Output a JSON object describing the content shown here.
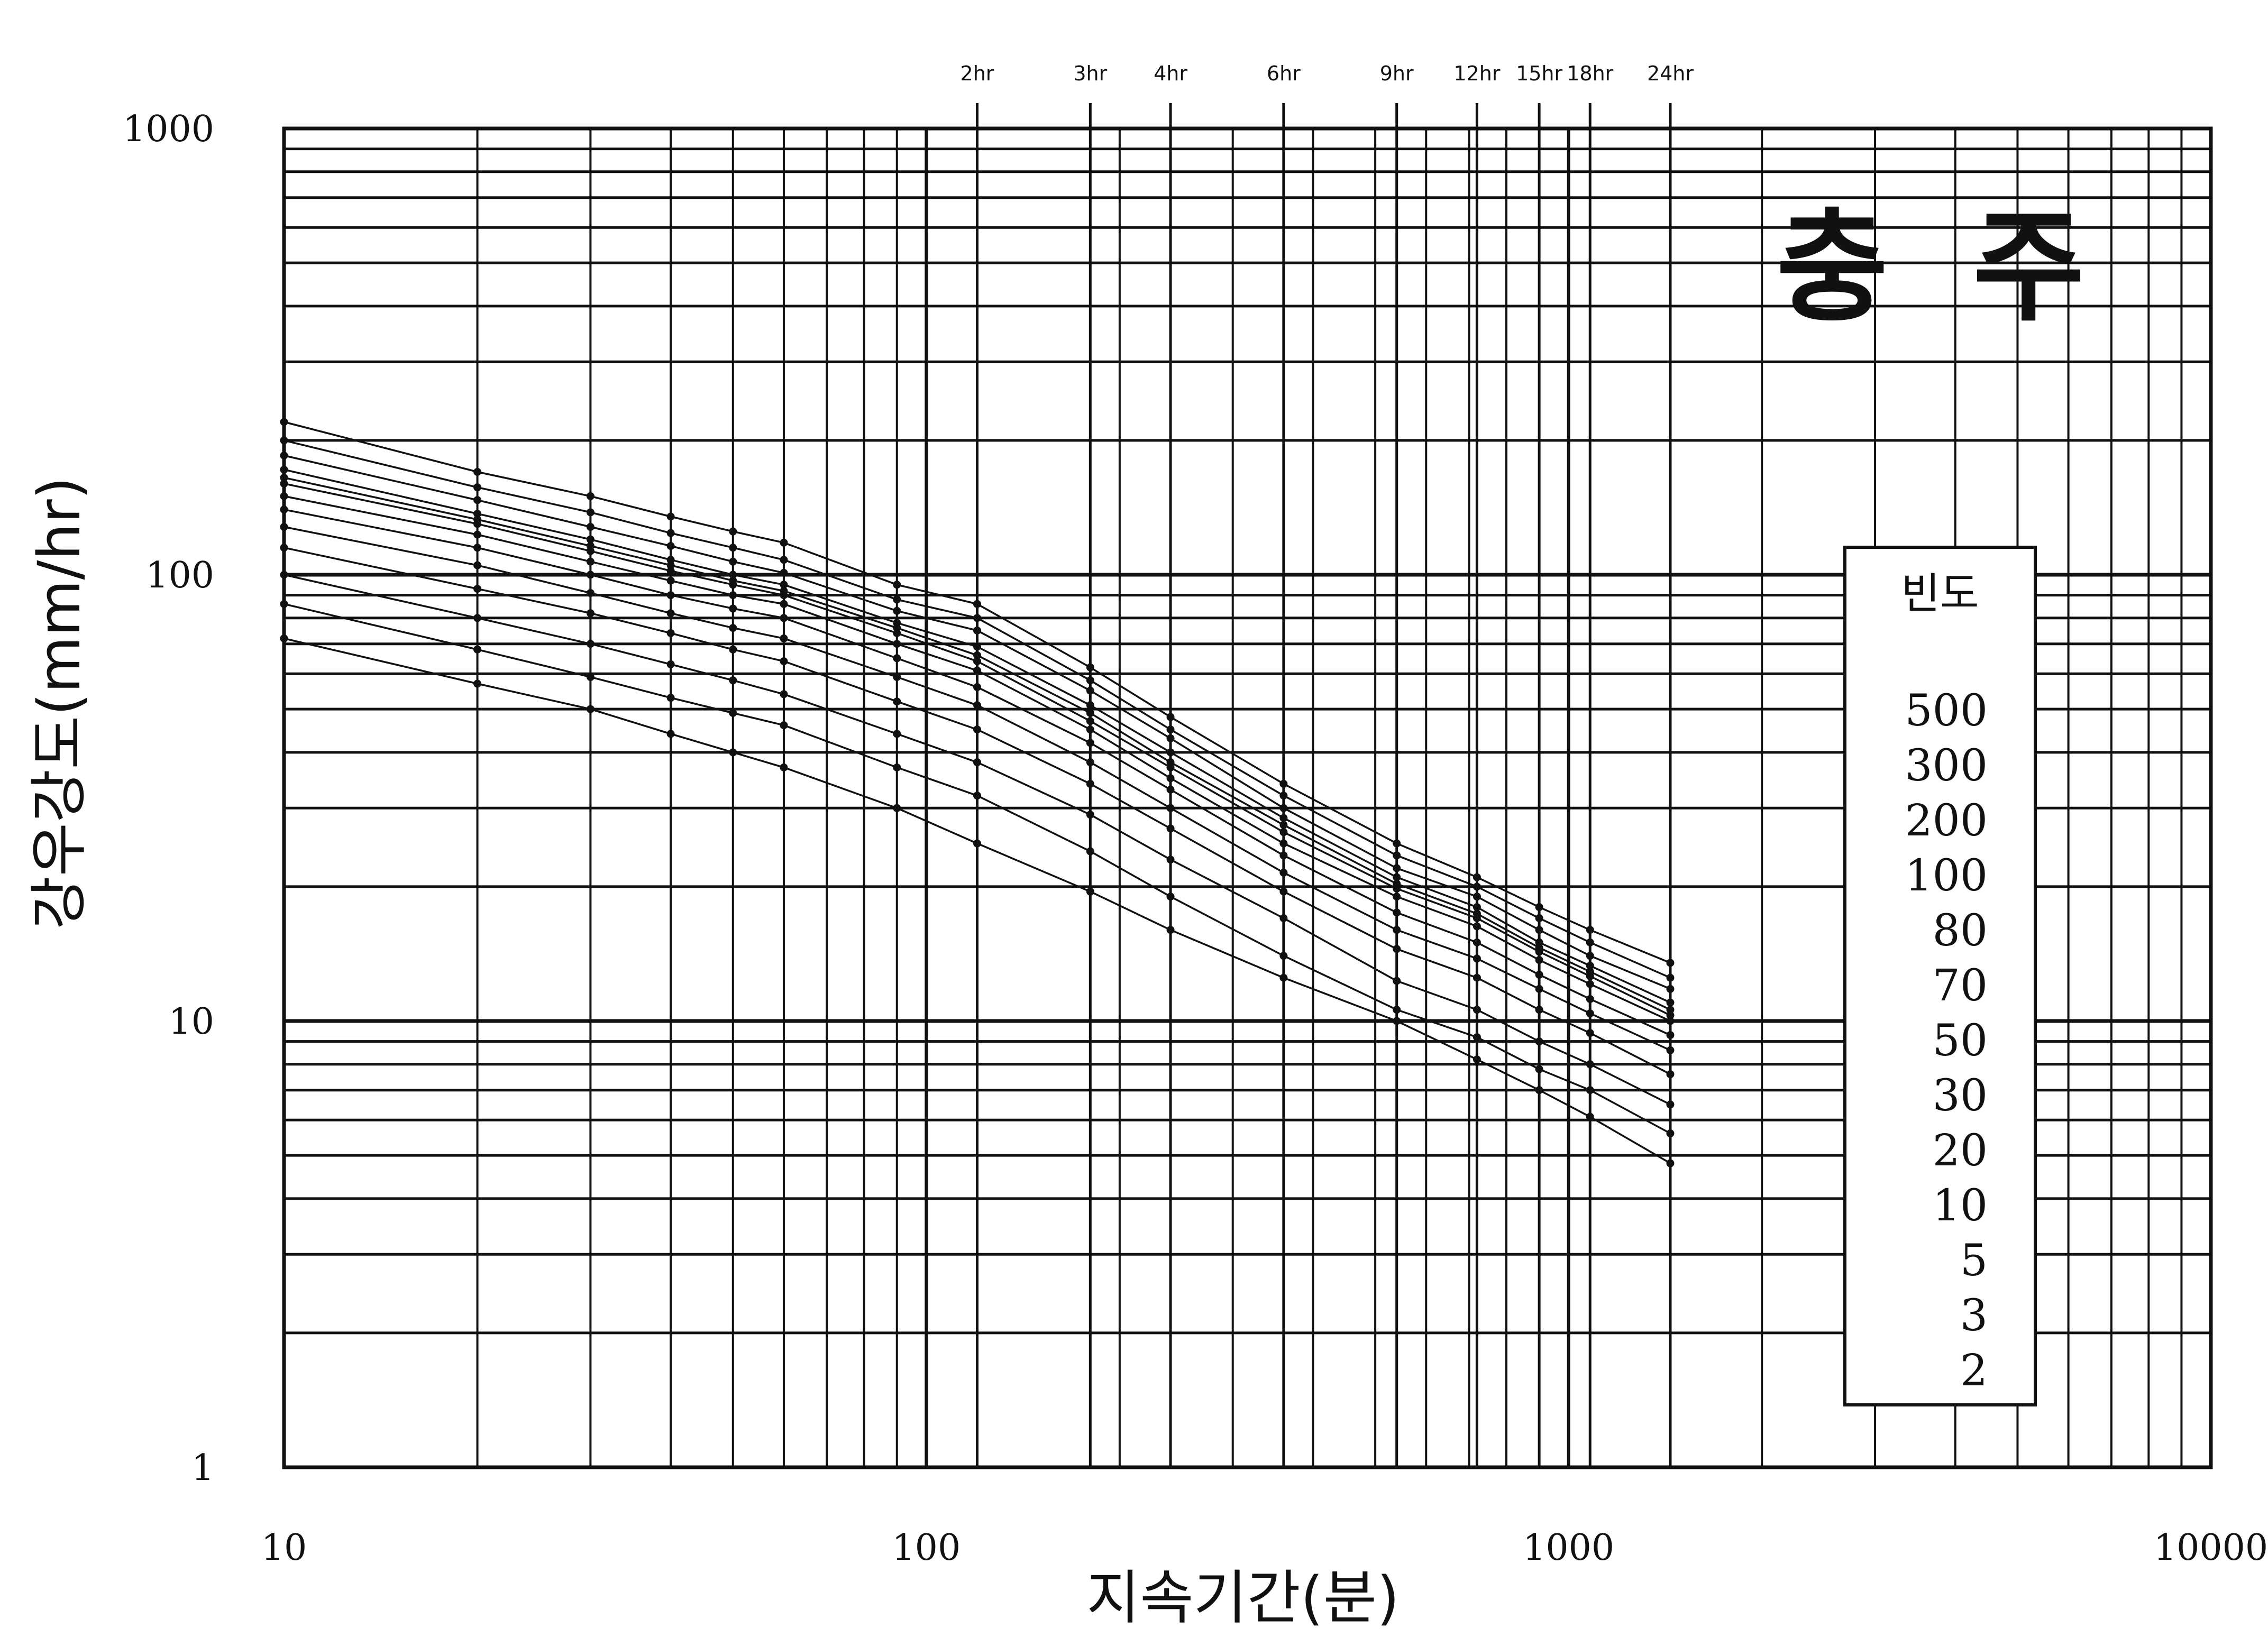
{
  "chart_data": {
    "type": "line",
    "title": "충  주",
    "xlabel": "지속기간(분)",
    "ylabel": "강우강도(mm/hr)",
    "x_scale": "log",
    "y_scale": "log",
    "xlim": [
      10,
      10000
    ],
    "ylim": [
      1,
      1000
    ],
    "x_ticks": [
      {
        "value": 10,
        "label": "10"
      },
      {
        "value": 100,
        "label": "100"
      },
      {
        "value": 1000,
        "label": "1000"
      },
      {
        "value": 10000,
        "label": "10000"
      }
    ],
    "y_ticks": [
      {
        "value": 1000,
        "label": "1000"
      },
      {
        "value": 100,
        "label": "100"
      },
      {
        "value": 10,
        "label": "10"
      },
      {
        "value": 1,
        "label": "1"
      }
    ],
    "top_ticks": [
      {
        "value": 120,
        "label": "2hr"
      },
      {
        "value": 180,
        "label": "3hr"
      },
      {
        "value": 240,
        "label": "4hr"
      },
      {
        "value": 360,
        "label": "6hr"
      },
      {
        "value": 540,
        "label": "9hr"
      },
      {
        "value": 720,
        "label": "12hr"
      },
      {
        "value": 900,
        "label": "15hr"
      },
      {
        "value": 1080,
        "label": "18hr"
      },
      {
        "value": 1440,
        "label": "24hr"
      }
    ],
    "grid": true,
    "legend_title": "빈도",
    "legend_position": "right",
    "x": [
      10,
      20,
      30,
      40,
      50,
      60,
      90,
      120,
      180,
      240,
      360,
      540,
      720,
      900,
      1080,
      1440
    ],
    "series": [
      {
        "name": "500",
        "values": [
          220,
          170,
          150,
          135,
          125,
          118,
          95,
          86,
          62,
          48,
          34,
          25,
          21,
          18,
          16,
          13.5
        ]
      },
      {
        "name": "300",
        "values": [
          200,
          157,
          138,
          124,
          115,
          108,
          88,
          80,
          58,
          45,
          32,
          23.5,
          20,
          17,
          15,
          12.5
        ]
      },
      {
        "name": "200",
        "values": [
          185,
          147,
          128,
          116,
          107,
          101,
          83,
          75,
          55,
          43,
          30,
          22,
          19,
          16,
          14,
          11.8
        ]
      },
      {
        "name": "100",
        "values": [
          172,
          137,
          120,
          108,
          100,
          95,
          78,
          69,
          51,
          40,
          28.5,
          21,
          18,
          15,
          13.3,
          11
        ]
      },
      {
        "name": "80",
        "values": [
          165,
          133,
          116,
          105,
          97,
          92,
          76,
          66,
          49,
          38,
          27.5,
          20.3,
          17.4,
          14.6,
          12.9,
          10.6
        ]
      },
      {
        "name": "70",
        "values": [
          160,
          130,
          113,
          102,
          95,
          90,
          74,
          64,
          47,
          37,
          26.5,
          19.8,
          17,
          14.3,
          12.6,
          10.3
        ]
      },
      {
        "name": "50",
        "values": [
          150,
          123,
          107,
          97,
          90,
          86,
          70,
          61,
          45,
          35,
          25,
          19,
          16.3,
          13.7,
          12.1,
          10
        ]
      },
      {
        "name": "30",
        "values": [
          140,
          115,
          100,
          90,
          84,
          80,
          65,
          56,
          42,
          33,
          23.5,
          17.5,
          15,
          12.7,
          11.2,
          9.3
        ]
      },
      {
        "name": "20",
        "values": [
          128,
          105,
          91,
          82,
          76,
          72,
          59,
          51,
          38,
          30,
          21.5,
          16,
          13.8,
          11.8,
          10.4,
          8.6
        ]
      },
      {
        "name": "10",
        "values": [
          115,
          93,
          82,
          74,
          68,
          64,
          52,
          45,
          34,
          27,
          19.5,
          14.5,
          12.5,
          10.6,
          9.4,
          7.6
        ]
      },
      {
        "name": "5",
        "values": [
          100,
          80,
          70,
          63,
          58,
          54,
          44,
          38,
          29,
          23,
          17,
          12.3,
          10.6,
          9,
          8,
          6.5
        ]
      },
      {
        "name": "3",
        "values": [
          86,
          68,
          59,
          53,
          49,
          46,
          37,
          32,
          24,
          19,
          14,
          10.6,
          9.2,
          7.8,
          7,
          5.6
        ]
      },
      {
        "name": "2",
        "values": [
          72,
          57,
          50,
          44,
          40,
          37,
          30,
          25,
          19.5,
          16,
          12.5,
          10,
          8.2,
          7,
          6.1,
          4.8
        ]
      }
    ]
  }
}
